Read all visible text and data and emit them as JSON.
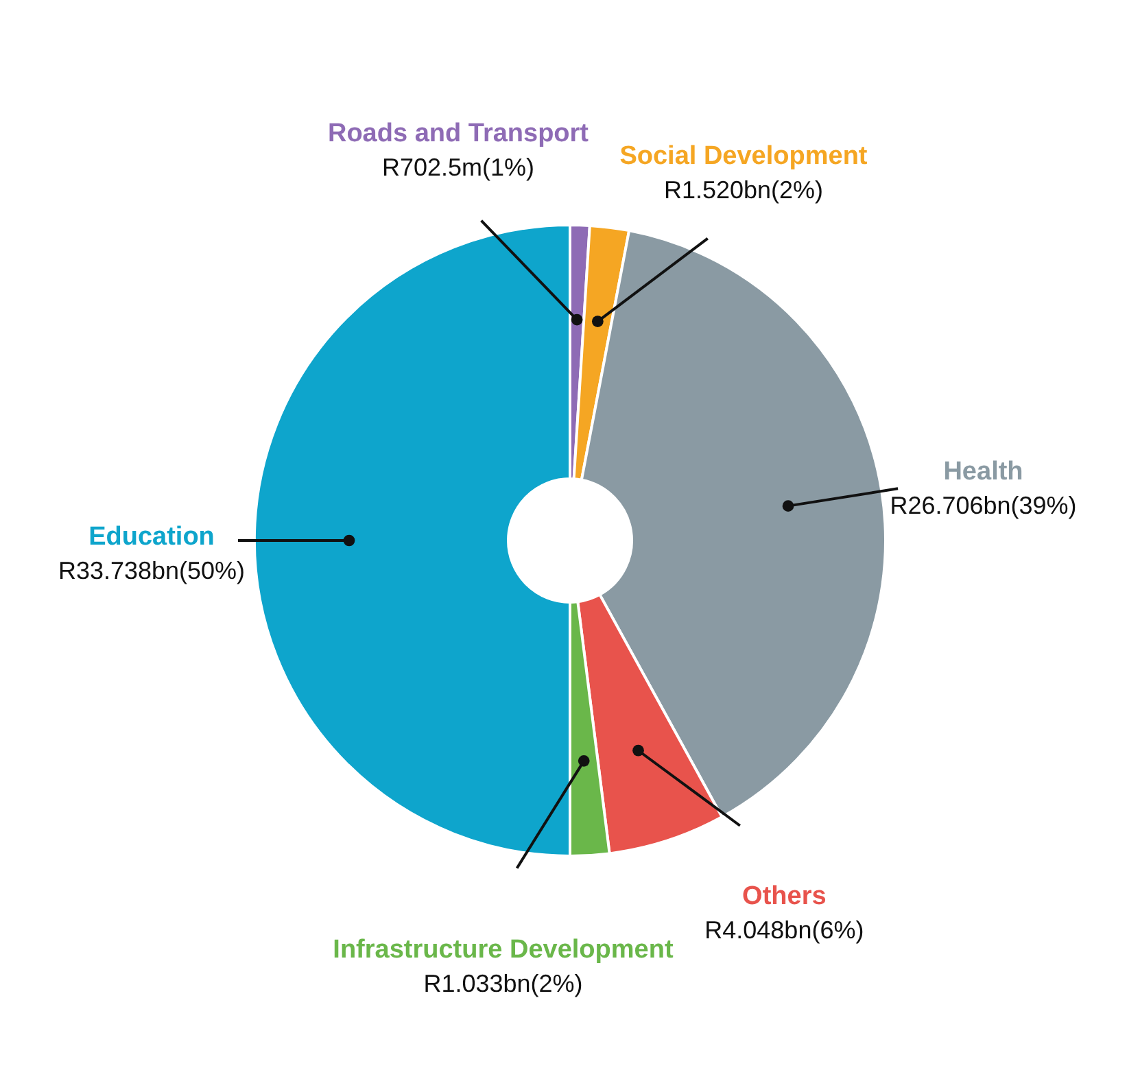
{
  "chart_data": {
    "type": "donut",
    "categories": [
      "Roads and Transport",
      "Social Development",
      "Health",
      "Others",
      "Infrastructure Development",
      "Education"
    ],
    "values": [
      1,
      2,
      39,
      6,
      2,
      50
    ],
    "colors": [
      "#8e6bb5",
      "#f5a623",
      "#8a9aa3",
      "#e8534c",
      "#6ab74a",
      "#0ea5cc"
    ],
    "value_labels": [
      "R702.5m(1%)",
      "R1.520bn(2%)",
      "R26.706bn(39%)",
      "R4.048bn(6%)",
      "R1.033bn(2%)",
      "R33.738bn(50%)"
    ]
  }
}
